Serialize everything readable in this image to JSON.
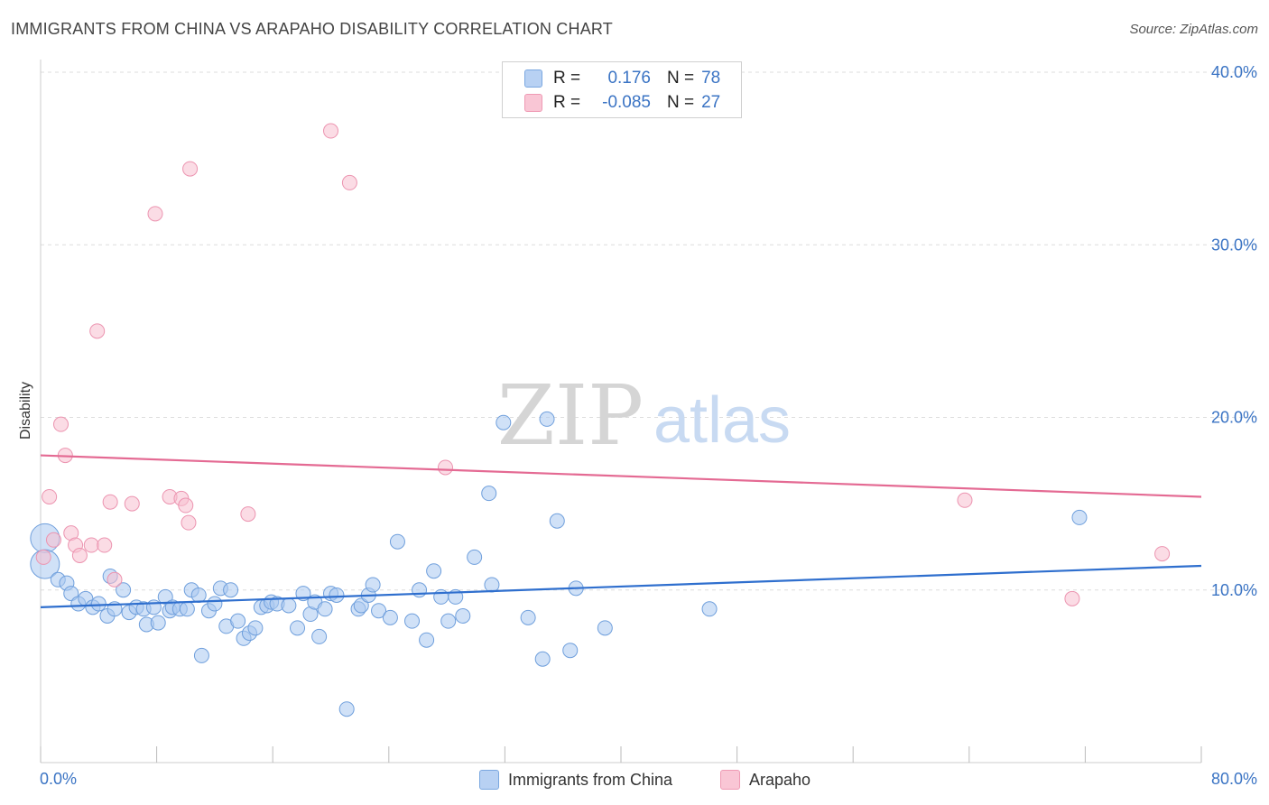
{
  "header": {
    "title": "IMMIGRANTS FROM CHINA VS ARAPAHO DISABILITY CORRELATION CHART",
    "source": "Source: ZipAtlas.com"
  },
  "watermark": {
    "zip": "ZIP",
    "atlas": "atlas"
  },
  "legend": {
    "r_label": "R =",
    "n_label": "N =",
    "rows": [
      {
        "r": "0.176",
        "n": "78",
        "fill": "#b8d1f3",
        "stroke": "#7aa7e0"
      },
      {
        "r": "-0.085",
        "n": "27",
        "fill": "#f9c6d5",
        "stroke": "#ef9ab4"
      }
    ]
  },
  "colors": {
    "blue_point": "#a9c8f0",
    "blue_stroke": "#6f9fdc",
    "blue_line": "#2f6fce",
    "pink_point": "#f7c0d0",
    "pink_stroke": "#ec94b0",
    "pink_line": "#e46a93",
    "accent_text": "#3b74c4"
  },
  "chart_data": {
    "type": "scatter",
    "title": "IMMIGRANTS FROM CHINA VS ARAPAHO DISABILITY CORRELATION CHART",
    "xlabel": "",
    "ylabel": "Disability",
    "xlim": [
      0,
      80
    ],
    "ylim": [
      0,
      40
    ],
    "x_tick_labels": [
      "0.0%",
      "80.0%"
    ],
    "y_tick_labels": [
      "10.0%",
      "20.0%",
      "30.0%",
      "40.0%"
    ],
    "y_ticks": [
      10,
      20,
      30,
      40
    ],
    "grid": true,
    "legend_position": "bottom",
    "series": [
      {
        "name": "Immigrants from China",
        "trend": {
          "x": [
            0,
            80
          ],
          "y": [
            9.0,
            11.4
          ]
        },
        "points": [
          [
            0.3,
            13.0
          ],
          [
            0.3,
            11.5
          ],
          [
            1.2,
            10.6
          ],
          [
            1.8,
            10.4
          ],
          [
            2.1,
            9.8
          ],
          [
            2.6,
            9.2
          ],
          [
            3.1,
            9.5
          ],
          [
            3.6,
            9.0
          ],
          [
            4.0,
            9.2
          ],
          [
            4.6,
            8.5
          ],
          [
            4.8,
            10.8
          ],
          [
            5.1,
            8.9
          ],
          [
            5.7,
            10.0
          ],
          [
            6.1,
            8.7
          ],
          [
            6.6,
            9.0
          ],
          [
            7.1,
            8.9
          ],
          [
            7.3,
            8.0
          ],
          [
            7.8,
            9.0
          ],
          [
            8.1,
            8.1
          ],
          [
            8.6,
            9.6
          ],
          [
            8.9,
            8.8
          ],
          [
            9.1,
            9.0
          ],
          [
            9.6,
            8.9
          ],
          [
            10.1,
            8.9
          ],
          [
            10.4,
            10.0
          ],
          [
            10.9,
            9.7
          ],
          [
            11.1,
            6.2
          ],
          [
            11.6,
            8.8
          ],
          [
            12.0,
            9.2
          ],
          [
            12.4,
            10.1
          ],
          [
            12.8,
            7.9
          ],
          [
            13.1,
            10.0
          ],
          [
            13.6,
            8.2
          ],
          [
            14.0,
            7.2
          ],
          [
            14.4,
            7.5
          ],
          [
            14.8,
            7.8
          ],
          [
            15.2,
            9.0
          ],
          [
            15.6,
            9.1
          ],
          [
            15.9,
            9.3
          ],
          [
            16.3,
            9.2
          ],
          [
            17.1,
            9.1
          ],
          [
            17.7,
            7.8
          ],
          [
            18.1,
            9.8
          ],
          [
            18.6,
            8.6
          ],
          [
            18.9,
            9.3
          ],
          [
            19.2,
            7.3
          ],
          [
            19.6,
            8.9
          ],
          [
            20.0,
            9.8
          ],
          [
            20.4,
            9.7
          ],
          [
            21.1,
            3.1
          ],
          [
            21.9,
            8.9
          ],
          [
            22.1,
            9.1
          ],
          [
            22.6,
            9.7
          ],
          [
            22.9,
            10.3
          ],
          [
            23.3,
            8.8
          ],
          [
            24.1,
            8.4
          ],
          [
            24.6,
            12.8
          ],
          [
            25.6,
            8.2
          ],
          [
            26.1,
            10.0
          ],
          [
            26.6,
            7.1
          ],
          [
            27.1,
            11.1
          ],
          [
            27.6,
            9.6
          ],
          [
            28.1,
            8.2
          ],
          [
            28.6,
            9.6
          ],
          [
            29.1,
            8.5
          ],
          [
            29.9,
            11.9
          ],
          [
            30.9,
            15.6
          ],
          [
            31.1,
            10.3
          ],
          [
            31.9,
            19.7
          ],
          [
            33.6,
            8.4
          ],
          [
            34.6,
            6.0
          ],
          [
            35.6,
            14.0
          ],
          [
            36.5,
            6.5
          ],
          [
            36.9,
            10.1
          ],
          [
            38.9,
            7.8
          ],
          [
            46.1,
            8.9
          ],
          [
            71.6,
            14.2
          ],
          [
            34.9,
            19.9
          ]
        ],
        "sizes_large": [
          [
            0.3,
            13.0
          ],
          [
            0.3,
            11.5
          ]
        ]
      },
      {
        "name": "Arapaho",
        "trend": {
          "x": [
            0,
            80
          ],
          "y": [
            17.8,
            15.4
          ]
        },
        "points": [
          [
            0.2,
            11.9
          ],
          [
            0.6,
            15.4
          ],
          [
            0.9,
            12.9
          ],
          [
            1.4,
            19.6
          ],
          [
            1.7,
            17.8
          ],
          [
            2.1,
            13.3
          ],
          [
            2.4,
            12.6
          ],
          [
            2.7,
            12.0
          ],
          [
            3.5,
            12.6
          ],
          [
            4.4,
            12.6
          ],
          [
            3.9,
            25.0
          ],
          [
            4.8,
            15.1
          ],
          [
            5.1,
            10.6
          ],
          [
            6.3,
            15.0
          ],
          [
            7.9,
            31.8
          ],
          [
            8.9,
            15.4
          ],
          [
            9.7,
            15.3
          ],
          [
            10.0,
            14.9
          ],
          [
            10.2,
            13.9
          ],
          [
            10.3,
            34.4
          ],
          [
            14.3,
            14.4
          ],
          [
            20.0,
            36.6
          ],
          [
            21.3,
            33.6
          ],
          [
            27.9,
            17.1
          ],
          [
            63.7,
            15.2
          ],
          [
            71.1,
            9.5
          ],
          [
            77.3,
            12.1
          ]
        ]
      }
    ]
  },
  "bottom_legend": [
    {
      "label": "Immigrants from China",
      "fill": "#b8d1f3",
      "stroke": "#7aa7e0"
    },
    {
      "label": "Arapaho",
      "fill": "#f9c6d5",
      "stroke": "#ef9ab4"
    }
  ]
}
